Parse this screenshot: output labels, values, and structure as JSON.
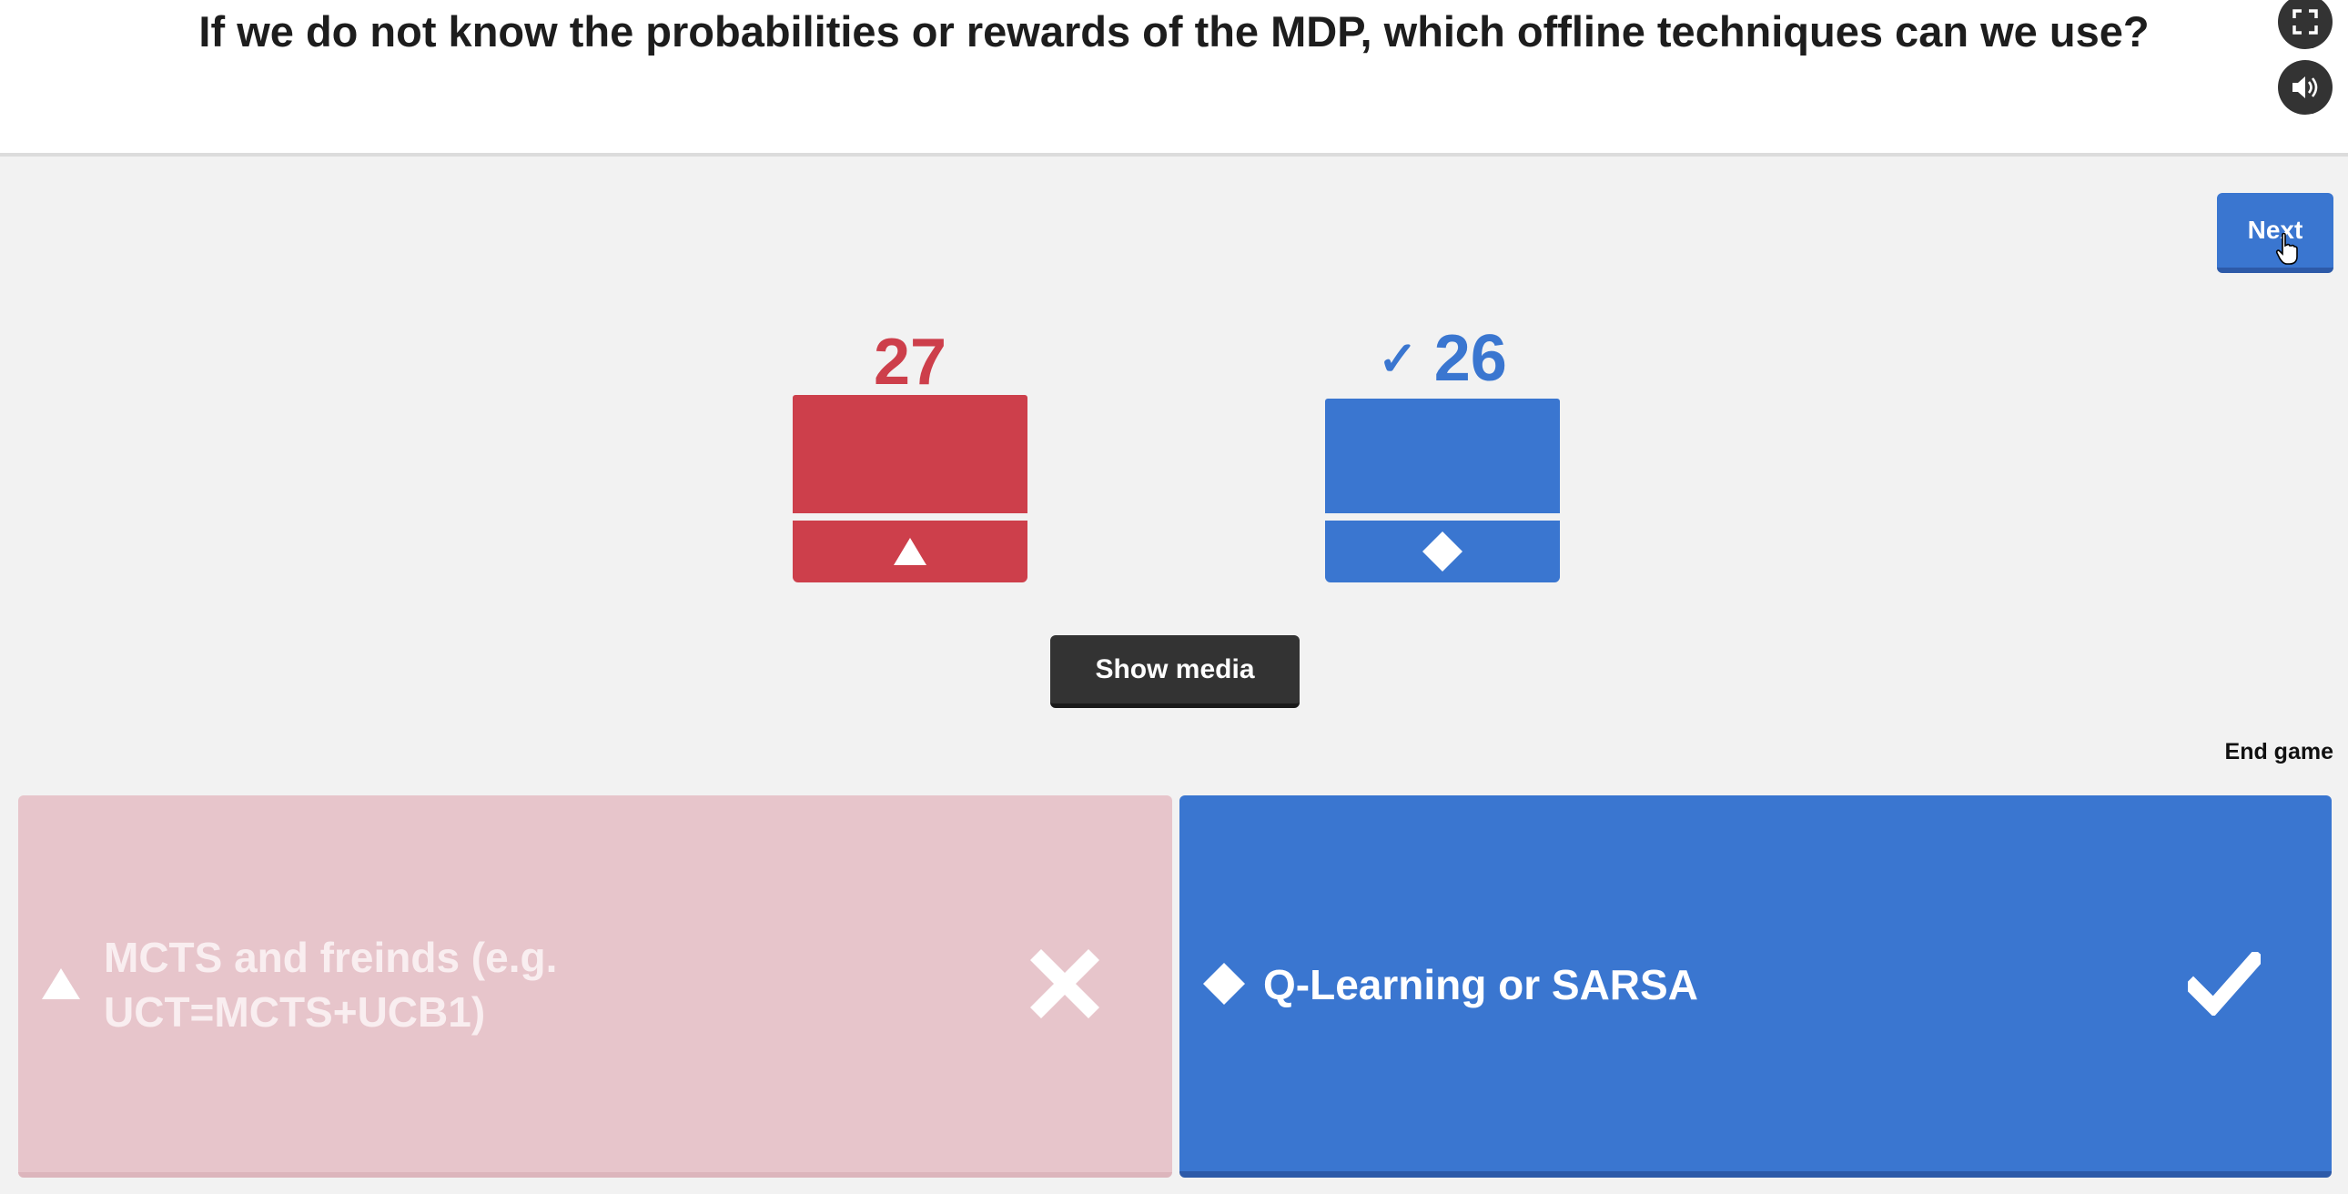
{
  "question": {
    "text": "If we do not know the probabilities or rewards of the MDP, which offline techniques can we use?"
  },
  "controls": {
    "fullscreen_icon": "fullscreen-icon",
    "sound_icon": "speaker-icon",
    "next_label": "Next",
    "show_media_label": "Show media",
    "end_game_label": "End game"
  },
  "results": [
    {
      "shape": "triangle",
      "count": "27",
      "correct": false,
      "color": "#cd3f4b"
    },
    {
      "shape": "diamond",
      "count": "26",
      "correct": true,
      "check_mark": "✓",
      "color": "#3a76d0"
    }
  ],
  "answers": [
    {
      "shape": "triangle",
      "text": "MCTS and freinds (e.g. UCT=MCTS+UCB1)",
      "status": "incorrect",
      "status_icon": "cross-icon",
      "color": "#e7c5cb"
    },
    {
      "shape": "diamond",
      "text": "Q-Learning or SARSA",
      "status": "correct",
      "status_icon": "check-icon",
      "color": "#3a76d0"
    }
  ]
}
